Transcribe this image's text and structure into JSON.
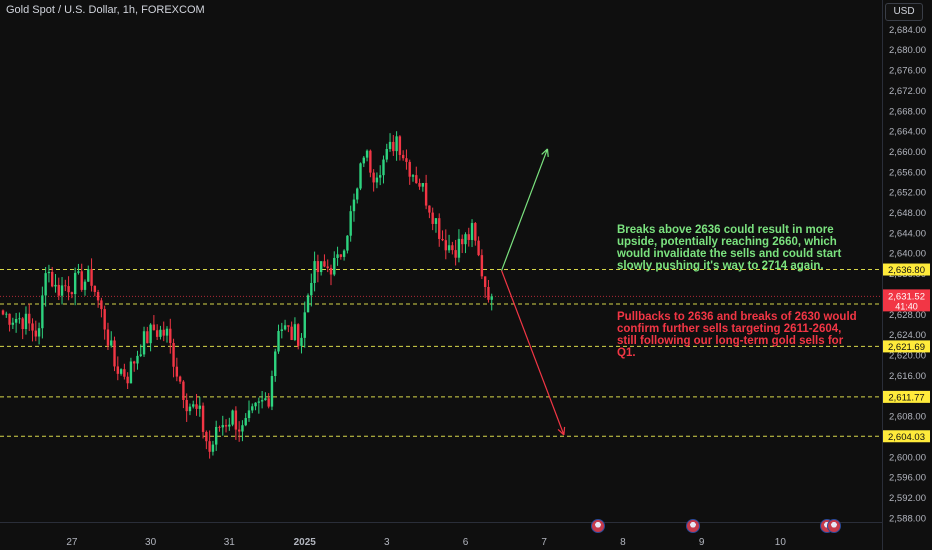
{
  "header": {
    "title": "Gold Spot / U.S. Dollar, 1h, FOREXCOM",
    "currency": "USD"
  },
  "annotations": {
    "bullish": "Breaks above 2636 could result in more upside, potentially reaching 2660, which would invalidate the sells and could start slowly pushing it's way to 2714 again.",
    "bearish": "Pullbacks to 2636 and breaks of 2630 would confirm further sells targeting 2611-2604, still following our long-term gold sells for Q1."
  },
  "colors": {
    "up": "#26a69a",
    "up_bright": "#2ed37f",
    "down": "#f23645",
    "level_line": "#d6d64a",
    "level_label_bg": "#ffeb3b",
    "current_label_bg": "#f23645",
    "green_arrow": "#7be27f",
    "red_arrow": "#f23645"
  },
  "chart_data": {
    "type": "candlestick",
    "y_axis": {
      "min": 2586,
      "max": 2688,
      "ticks": [
        "2,684.00",
        "2,680.00",
        "2,676.00",
        "2,672.00",
        "2,668.00",
        "2,664.00",
        "2,660.00",
        "2,656.00",
        "2,652.00",
        "2,648.00",
        "2,644.00",
        "2,640.00",
        "2,636.00",
        "2,632.00",
        "2,628.00",
        "2,624.00",
        "2,620.00",
        "2,616.00",
        "2,612.00",
        "2,608.00",
        "2,604.00",
        "2,600.00",
        "2,596.00",
        "2,592.00",
        "2,588.00"
      ]
    },
    "x_axis": {
      "labels": [
        {
          "label": "27",
          "bar": 21
        },
        {
          "label": "30",
          "bar": 45
        },
        {
          "label": "31",
          "bar": 69
        },
        {
          "label": "2025",
          "bar": 92
        },
        {
          "label": "3",
          "bar": 117
        },
        {
          "label": "6",
          "bar": 141
        },
        {
          "label": "7",
          "bar": 165
        },
        {
          "label": "8",
          "bar": 189
        },
        {
          "label": "9",
          "bar": 213
        },
        {
          "label": "10",
          "bar": 237
        }
      ]
    },
    "levels": [
      {
        "price": 2636.8,
        "label": "2,636.80"
      },
      {
        "price": 2630.03,
        "label": "2,630.03"
      },
      {
        "price": 2621.69,
        "label": "2,621.69"
      },
      {
        "price": 2611.77,
        "label": "2,611.77"
      },
      {
        "price": 2604.03,
        "label": "2,604.03"
      }
    ],
    "current": {
      "price": 2631.52,
      "label": "2,631.52",
      "countdown": "41:40"
    },
    "projection": {
      "pivot": {
        "bar": 152,
        "price": 2636.6
      },
      "up_target": {
        "bar": 166,
        "price": 2660.5
      },
      "down_target": {
        "bar": 171,
        "price": 2604.3
      }
    },
    "anchors": [
      {
        "bar": 0,
        "price": 2628
      },
      {
        "bar": 6,
        "price": 2627
      },
      {
        "bar": 11,
        "price": 2624
      },
      {
        "bar": 13,
        "price": 2638
      },
      {
        "bar": 16,
        "price": 2633
      },
      {
        "bar": 21,
        "price": 2634
      },
      {
        "bar": 27,
        "price": 2635
      },
      {
        "bar": 31,
        "price": 2626
      },
      {
        "bar": 34,
        "price": 2618
      },
      {
        "bar": 38,
        "price": 2616
      },
      {
        "bar": 42,
        "price": 2622
      },
      {
        "bar": 46,
        "price": 2625
      },
      {
        "bar": 50,
        "price": 2624
      },
      {
        "bar": 53,
        "price": 2617
      },
      {
        "bar": 56,
        "price": 2611
      },
      {
        "bar": 60,
        "price": 2608
      },
      {
        "bar": 63,
        "price": 2601
      },
      {
        "bar": 66,
        "price": 2606
      },
      {
        "bar": 70,
        "price": 2608
      },
      {
        "bar": 73,
        "price": 2605
      },
      {
        "bar": 77,
        "price": 2609
      },
      {
        "bar": 81,
        "price": 2612
      },
      {
        "bar": 84,
        "price": 2626
      },
      {
        "bar": 88,
        "price": 2624
      },
      {
        "bar": 91,
        "price": 2624
      },
      {
        "bar": 94,
        "price": 2636
      },
      {
        "bar": 98,
        "price": 2637
      },
      {
        "bar": 102,
        "price": 2638
      },
      {
        "bar": 105,
        "price": 2645
      },
      {
        "bar": 108,
        "price": 2652
      },
      {
        "bar": 110,
        "price": 2660
      },
      {
        "bar": 113,
        "price": 2656
      },
      {
        "bar": 117,
        "price": 2659
      },
      {
        "bar": 120,
        "price": 2663
      },
      {
        "bar": 123,
        "price": 2658
      },
      {
        "bar": 127,
        "price": 2654
      },
      {
        "bar": 131,
        "price": 2648
      },
      {
        "bar": 134,
        "price": 2643
      },
      {
        "bar": 137,
        "price": 2641
      },
      {
        "bar": 140,
        "price": 2642
      },
      {
        "bar": 143,
        "price": 2644
      },
      {
        "bar": 145,
        "price": 2639
      },
      {
        "bar": 147,
        "price": 2634
      },
      {
        "bar": 149,
        "price": 2631.5
      }
    ],
    "bar_count": 150,
    "total_bars": 252,
    "event_flags": [
      {
        "bar": 181
      },
      {
        "bar": 210
      },
      {
        "bar": 251
      },
      {
        "bar": 253
      }
    ]
  }
}
